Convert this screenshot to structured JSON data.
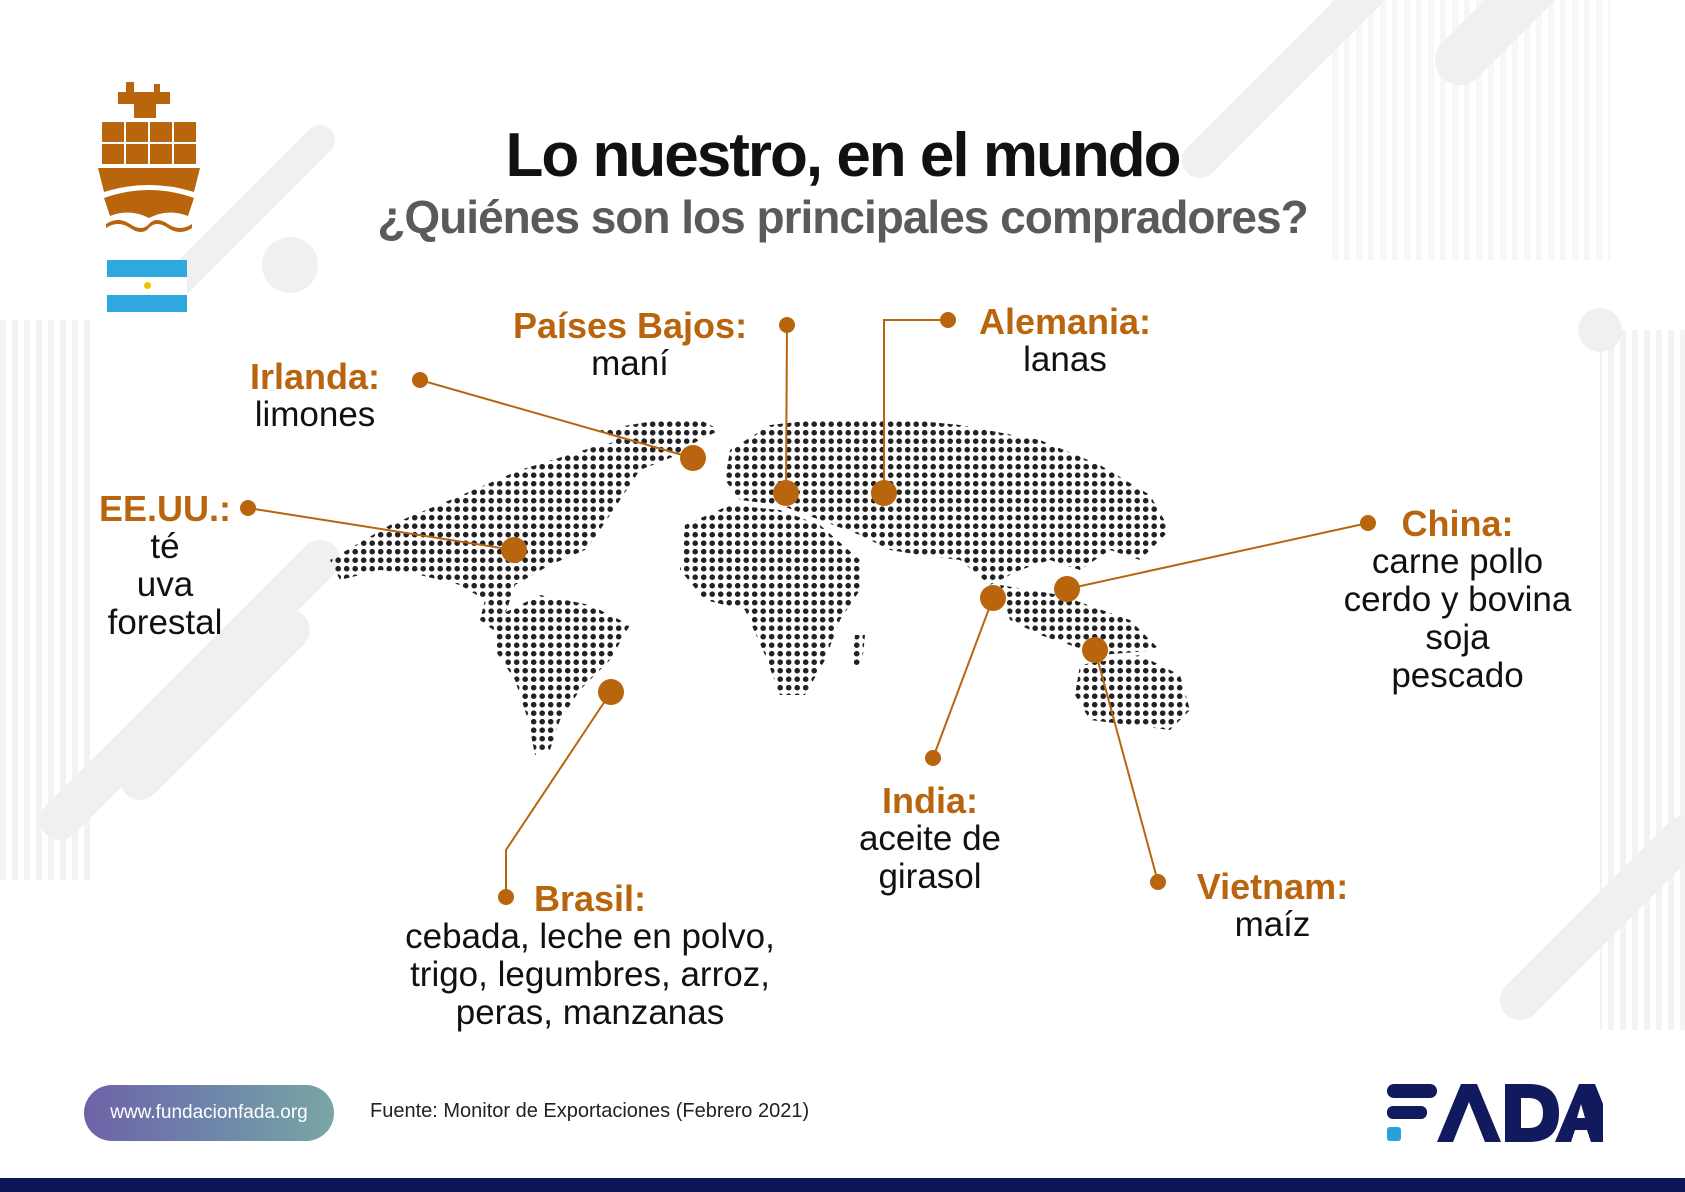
{
  "header": {
    "title": "Lo nuestro, en el mundo",
    "subtitle": "¿Quiénes son los principales compradores?"
  },
  "icons": {
    "ship": "container-ship-icon",
    "flag": "argentina-flag"
  },
  "colors": {
    "accent": "#b8650e",
    "title": "#111111",
    "subtitle": "#5a5a5a",
    "flag_blue": "#2fa8e0",
    "logo_navy": "#101a5c",
    "logo_blue": "#2a9fe0",
    "bottom_bar": "#0e1657"
  },
  "map": {
    "type": "dotted-world-map",
    "destinations": [
      {
        "country": "Países Bajos:",
        "products": "maní"
      },
      {
        "country": "Alemania:",
        "products": "lanas"
      },
      {
        "country": "Irlanda:",
        "products": "limones"
      },
      {
        "country": "EE.UU.:",
        "products": "té\nuva\nforestal"
      },
      {
        "country": "China:",
        "products": "carne pollo\ncerdo y bovina\nsoja\npescado"
      },
      {
        "country": "India:",
        "products": "aceite de\ngirasol"
      },
      {
        "country": "Vietnam:",
        "products": "maíz"
      },
      {
        "country": "Brasil:",
        "products": "cebada, leche en polvo,\ntrigo, legumbres, arroz,\nperas, manzanas"
      }
    ]
  },
  "footer": {
    "website": "www.fundacionfada.org",
    "source": "Fuente: Monitor de Exportaciones (Febrero 2021)",
    "logo_text": "FADA"
  }
}
